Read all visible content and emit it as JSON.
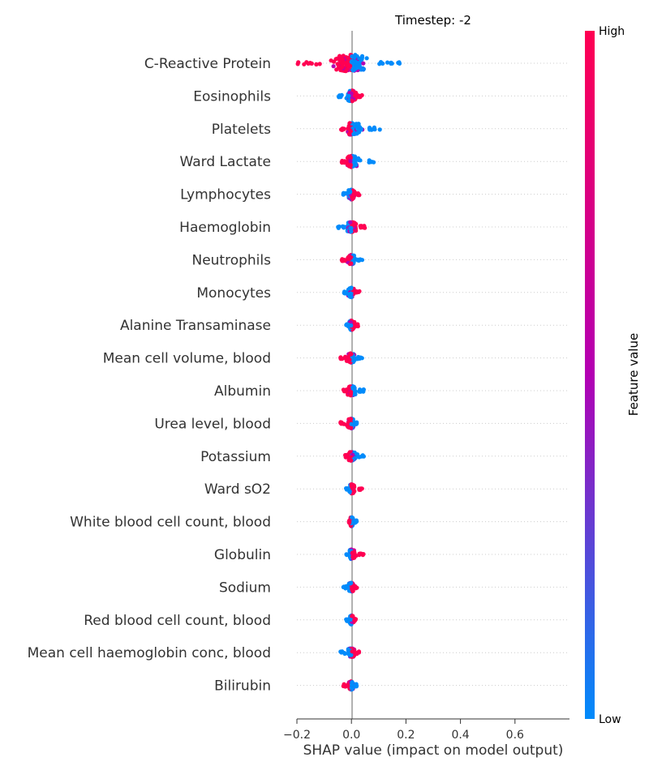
{
  "chart_data": {
    "type": "scatter",
    "subtype": "shap-beeswarm",
    "title": "Timestep: -2",
    "xlabel": "SHAP value (impact on model output)",
    "ylabel": "",
    "xlim": [
      -0.2,
      0.8
    ],
    "xticks": [
      -0.2,
      0.0,
      0.2,
      0.4,
      0.6
    ],
    "xtick_labels": [
      "−0.2",
      "0.0",
      "0.2",
      "0.4",
      "0.6"
    ],
    "grid": "dotted horizontal guides per feature",
    "colorbar": {
      "title": "Feature value",
      "high_label": "High",
      "low_label": "Low",
      "high_color": "#ff0052",
      "mid_color": "#b300b3",
      "low_color": "#008bfb"
    },
    "features": [
      {
        "name": "C-Reactive Protein",
        "min": -0.2,
        "max": 0.18,
        "neg_color": "high",
        "spread": 1.0
      },
      {
        "name": "Eosinophils",
        "min": -0.05,
        "max": 0.04,
        "neg_color": "low",
        "spread": 0.55
      },
      {
        "name": "Platelets",
        "min": -0.04,
        "max": 0.11,
        "neg_color": "high",
        "spread": 0.6
      },
      {
        "name": "Ward Lactate",
        "min": -0.04,
        "max": 0.09,
        "neg_color": "high",
        "spread": 0.55
      },
      {
        "name": "Lymphocytes",
        "min": -0.03,
        "max": 0.03,
        "neg_color": "low",
        "spread": 0.5
      },
      {
        "name": "Haemoglobin",
        "min": -0.05,
        "max": 0.05,
        "neg_color": "low",
        "spread": 0.5
      },
      {
        "name": "Neutrophils",
        "min": -0.04,
        "max": 0.04,
        "neg_color": "high",
        "spread": 0.45
      },
      {
        "name": "Monocytes",
        "min": -0.03,
        "max": 0.03,
        "neg_color": "low",
        "spread": 0.45
      },
      {
        "name": "Alanine Transaminase",
        "min": -0.02,
        "max": 0.03,
        "neg_color": "low",
        "spread": 0.45
      },
      {
        "name": "Mean cell volume, blood",
        "min": -0.04,
        "max": 0.04,
        "neg_color": "high",
        "spread": 0.45
      },
      {
        "name": "Albumin",
        "min": -0.03,
        "max": 0.05,
        "neg_color": "high",
        "spread": 0.45
      },
      {
        "name": "Urea level, blood",
        "min": -0.04,
        "max": 0.02,
        "neg_color": "high",
        "spread": 0.45
      },
      {
        "name": "Potassium",
        "min": -0.03,
        "max": 0.05,
        "neg_color": "high",
        "spread": 0.4
      },
      {
        "name": "Ward sO2",
        "min": -0.02,
        "max": 0.04,
        "neg_color": "low",
        "spread": 0.4
      },
      {
        "name": "White blood cell count, blood",
        "min": -0.01,
        "max": 0.02,
        "neg_color": "high",
        "spread": 0.4
      },
      {
        "name": "Globulin",
        "min": -0.02,
        "max": 0.05,
        "neg_color": "low",
        "spread": 0.45
      },
      {
        "name": "Sodium",
        "min": -0.03,
        "max": 0.02,
        "neg_color": "low",
        "spread": 0.4
      },
      {
        "name": "Red blood cell count, blood",
        "min": -0.02,
        "max": 0.02,
        "neg_color": "low",
        "spread": 0.4
      },
      {
        "name": "Mean cell haemoglobin conc, blood",
        "min": -0.04,
        "max": 0.03,
        "neg_color": "low",
        "spread": 0.4
      },
      {
        "name": "Bilirubin",
        "min": -0.03,
        "max": 0.02,
        "neg_color": "high",
        "spread": 0.35
      }
    ]
  }
}
